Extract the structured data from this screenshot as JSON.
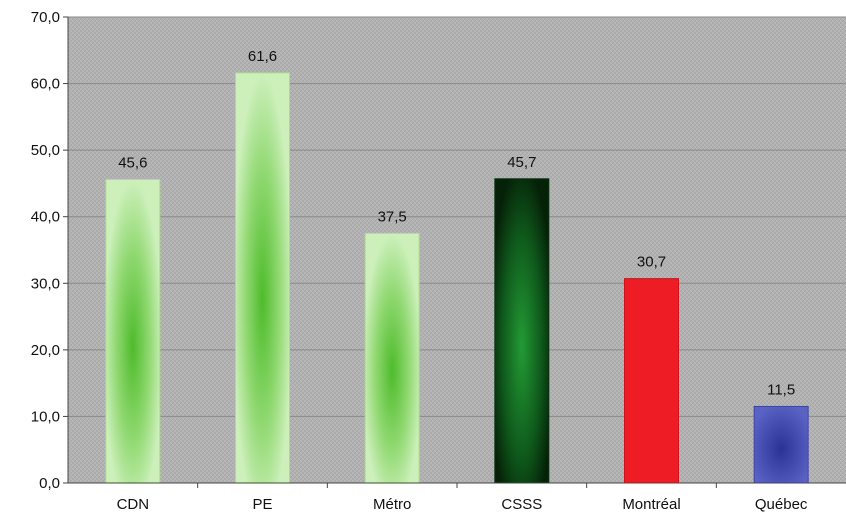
{
  "chart_data": {
    "type": "bar",
    "categories": [
      "CDN",
      "PE",
      "Métro",
      "CSSS",
      "Montréal",
      "Québec"
    ],
    "values": [
      45.6,
      61.6,
      37.5,
      45.7,
      30.7,
      11.5
    ],
    "value_labels": [
      "45,6",
      "61,6",
      "37,5",
      "45,7",
      "30,7",
      "11,5"
    ],
    "y_tick_values": [
      0,
      10,
      20,
      30,
      40,
      50,
      60,
      70
    ],
    "y_tick_labels": [
      "0,0",
      "10,0",
      "20,0",
      "30,0",
      "40,0",
      "50,0",
      "60,0",
      "70,0"
    ],
    "ylim": [
      0,
      70
    ],
    "grid": true,
    "legend": "none",
    "bar_styles": [
      "light-green",
      "light-green",
      "light-green",
      "dark-green",
      "red",
      "blue"
    ],
    "colors": {
      "plot_bg": "#b4b4b4",
      "gridline": "#8a8a8a",
      "light_green_edge": "#c9efb4",
      "light_green_center": "#5fc43a",
      "dark_green_edge": "#062a0c",
      "dark_green_center": "#1f8a2f",
      "red": "#ee1c24",
      "blue_edge": "#5058b8",
      "blue_center": "#2a3296"
    }
  }
}
